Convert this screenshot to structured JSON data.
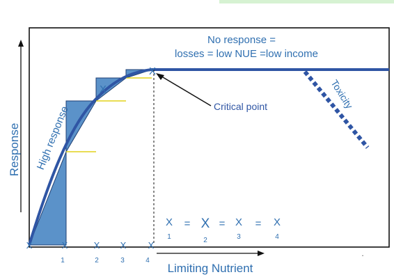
{
  "labels": {
    "no_response_line1": "No response =",
    "no_response_line2": "losses = low NUE =low income",
    "high_response": "High response",
    "toxicity": "Toxicity",
    "critical_point": "Critical point",
    "y_axis": "Response",
    "x_axis": "Limiting Nutrient",
    "x_marker": "X",
    "equals": "=",
    "dot": "."
  },
  "ticks": [
    {
      "label": "1"
    },
    {
      "label": "2"
    },
    {
      "label": "3"
    },
    {
      "label": "4"
    }
  ],
  "equation_terms": [
    {
      "symbol": "X",
      "subscript": "1"
    },
    {
      "symbol": "X",
      "subscript": "2"
    },
    {
      "symbol": "X",
      "subscript": "3"
    },
    {
      "symbol": "X",
      "subscript": "4"
    }
  ],
  "colors": {
    "curve": "#2f55a4",
    "text": "#2f6fb0",
    "fill": "#5b92c9",
    "tangent": "#e2d21a"
  }
}
